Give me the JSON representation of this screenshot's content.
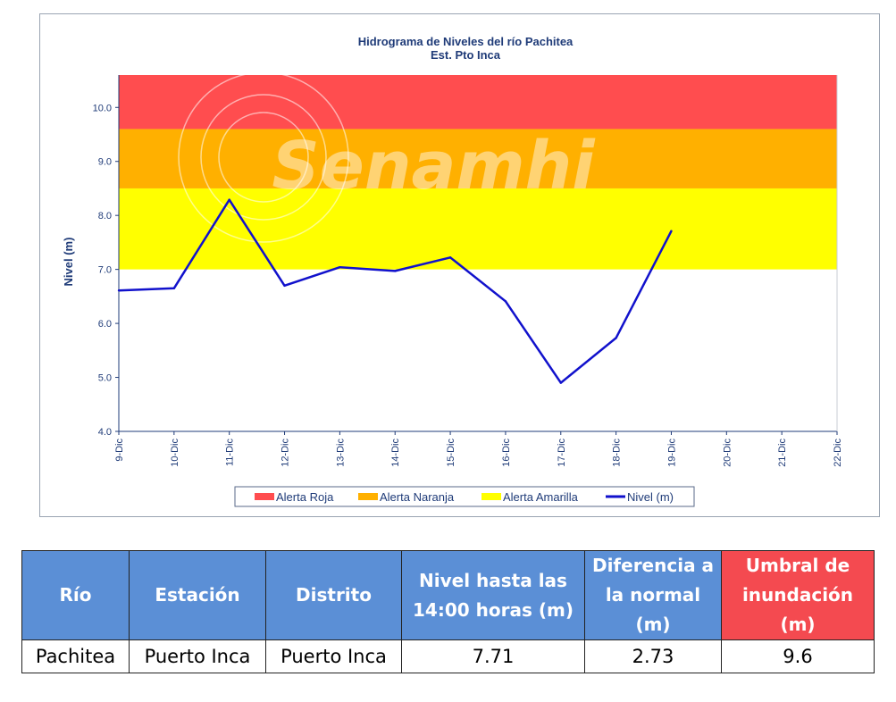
{
  "chart_data": {
    "type": "line",
    "title": "Hidrograma de Niveles del río Pachitea",
    "subtitle": "Est. Pto Inca",
    "ylabel": "Nivel (m)",
    "xlabel": "",
    "ylim": [
      4.0,
      10.6
    ],
    "yticks": [
      4.0,
      5.0,
      6.0,
      7.0,
      8.0,
      9.0,
      10.0
    ],
    "categories": [
      "9-Dic",
      "10-Dic",
      "11-Dic",
      "12-Dic",
      "13-Dic",
      "14-Dic",
      "15-Dic",
      "16-Dic",
      "17-Dic",
      "18-Dic",
      "19-Dic",
      "20-Dic",
      "21-Dic",
      "22-Dic"
    ],
    "series": [
      {
        "name": "Nivel (m)",
        "color": "#1111cc",
        "values": [
          6.61,
          6.65,
          8.29,
          6.7,
          7.04,
          6.97,
          7.22,
          6.41,
          4.9,
          5.73,
          7.71,
          null,
          null,
          null
        ]
      }
    ],
    "bands": [
      {
        "name": "Alerta Amarilla",
        "color": "#ffff00",
        "from": 7.0,
        "to": 8.5
      },
      {
        "name": "Alerta Naranja",
        "color": "#ffb000",
        "from": 8.5,
        "to": 9.6
      },
      {
        "name": "Alerta Roja",
        "color": "#ff4d4f",
        "from": 9.6,
        "to": 10.6
      }
    ],
    "legend": {
      "position": "bottom",
      "entries": [
        {
          "name": "Alerta Roja",
          "color": "#ff4d4f"
        },
        {
          "name": "Alerta Naranja",
          "color": "#ffb000"
        },
        {
          "name": "Alerta Amarilla",
          "color": "#ffff00"
        },
        {
          "name": "Nivel (m)",
          "color": "#1111cc"
        }
      ]
    },
    "watermark": "Senamhi",
    "grid": false
  },
  "table": {
    "headers": [
      "Río",
      "Estación",
      "Distrito",
      "Nivel hasta las 14:00 horas (m)",
      "Diferencia a la normal (m)",
      "Umbral de inundación (m)"
    ],
    "header_colors": [
      "#5b8fd6",
      "#5b8fd6",
      "#5b8fd6",
      "#5b8fd6",
      "#5b8fd6",
      "#f44a50"
    ],
    "row": [
      "Pachitea",
      "Puerto Inca",
      "Puerto Inca",
      "7.71",
      "2.73",
      "9.6"
    ]
  }
}
